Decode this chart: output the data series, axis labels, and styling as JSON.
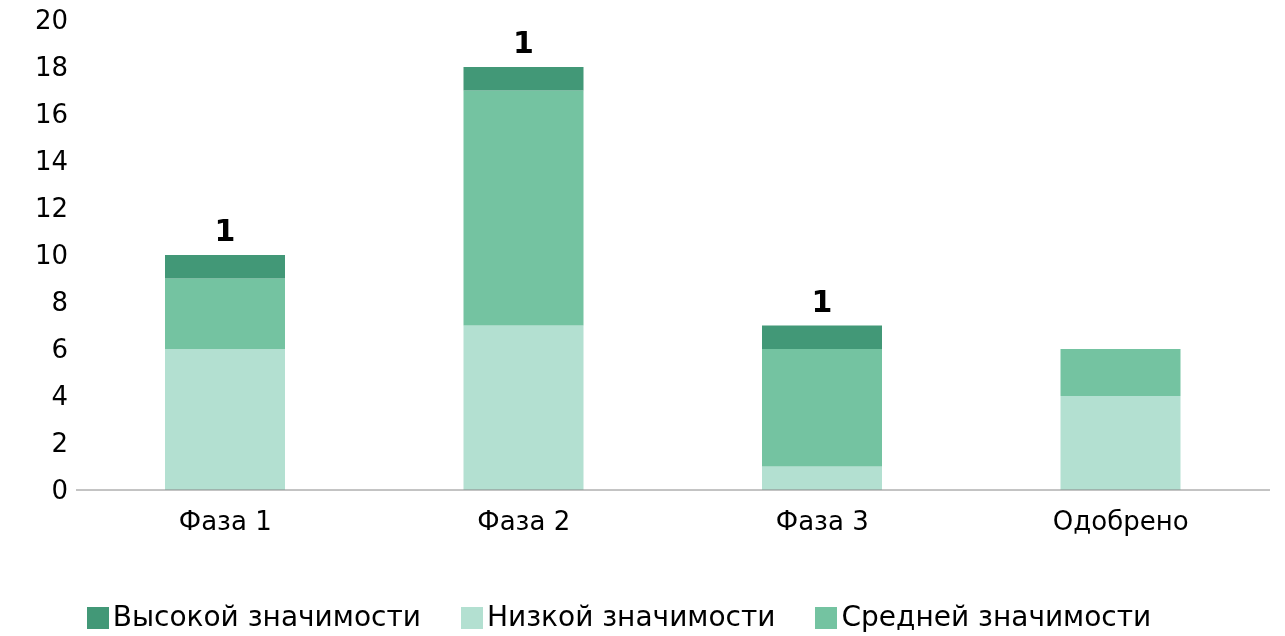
{
  "chart_data": {
    "type": "bar",
    "stacked": true,
    "categories": [
      "Фаза 1",
      "Фаза 2",
      "Фаза 3",
      "Одобрено"
    ],
    "series": [
      {
        "name": "Низкой значимости",
        "color": "#b3e0d1",
        "values": [
          6,
          7,
          1,
          4
        ]
      },
      {
        "name": "Средней значимости",
        "color": "#74c3a1",
        "values": [
          3,
          10,
          5,
          2
        ]
      },
      {
        "name": "Высокой значимости",
        "color": "#429877",
        "values": [
          1,
          1,
          1,
          null
        ],
        "value_labels": [
          "1",
          "1",
          "1",
          null
        ]
      }
    ],
    "ylim": [
      0,
      20
    ],
    "yticks": [
      0,
      2,
      4,
      6,
      8,
      10,
      12,
      14,
      16,
      18,
      20
    ],
    "grid": false,
    "legend": "bottom"
  }
}
